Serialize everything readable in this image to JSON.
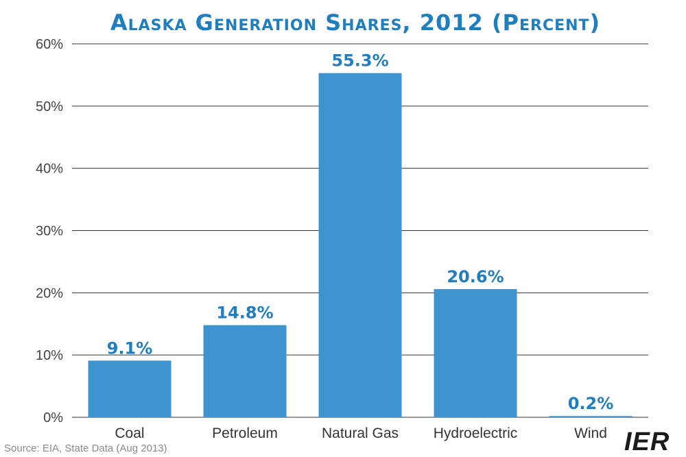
{
  "chart_data": {
    "type": "bar",
    "title": "Alaska Generation Shares, 2012 (Percent)",
    "categories": [
      "Coal",
      "Petroleum",
      "Natural Gas",
      "Hydroelectric",
      "Wind"
    ],
    "values": [
      9.1,
      14.8,
      55.3,
      20.6,
      0.2
    ],
    "data_labels": [
      "9.1%",
      "14.8%",
      "55.3%",
      "20.6%",
      "0.2%"
    ],
    "ylim": [
      0,
      60
    ],
    "yticks": [
      0,
      10,
      20,
      30,
      40,
      50,
      60
    ],
    "ytick_labels": [
      "0%",
      "10%",
      "20%",
      "30%",
      "40%",
      "50%",
      "60%"
    ],
    "xlabel": "",
    "ylabel": "",
    "grid": true,
    "bar_color": "#3d94cf",
    "label_color": "#1f7ec0",
    "title_color": "#1f7ec0"
  },
  "source": "Source: EIA, State Data (Aug 2013)",
  "logo": {
    "text": "IER",
    "color": "#1b1b1b",
    "accent": "#1f7ec0"
  }
}
